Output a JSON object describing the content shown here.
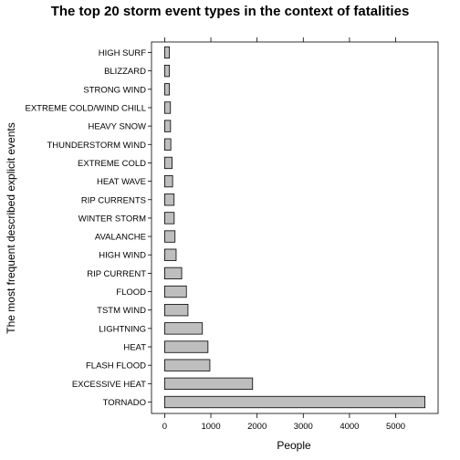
{
  "chart_data": {
    "type": "bar",
    "orientation": "horizontal",
    "title": "The top 20 storm event types in the context of fatalities",
    "xlabel": "People",
    "ylabel": "The most frequent described explicit events",
    "categories": [
      "TORNADO",
      "EXCESSIVE HEAT",
      "FLASH FLOOD",
      "HEAT",
      "LIGHTNING",
      "TSTM WIND",
      "FLOOD",
      "RIP CURRENT",
      "HIGH WIND",
      "AVALANCHE",
      "WINTER STORM",
      "RIP CURRENTS",
      "HEAT WAVE",
      "EXTREME COLD",
      "THUNDERSTORM WIND",
      "HEAVY SNOW",
      "EXTREME COLD/WIND CHILL",
      "STRONG WIND",
      "BLIZZARD",
      "HIGH SURF"
    ],
    "values": [
      5633,
      1903,
      978,
      937,
      816,
      504,
      470,
      368,
      248,
      224,
      206,
      204,
      172,
      160,
      133,
      127,
      125,
      103,
      101,
      101
    ],
    "xlim": [
      -285,
      5918
    ],
    "xticks": [
      0,
      1000,
      2000,
      3000,
      4000,
      5000
    ],
    "xtick_labels": [
      "0",
      "1000",
      "2000",
      "3000",
      "4000",
      "5000"
    ],
    "grid": false,
    "bar_color": "#bebebe"
  }
}
